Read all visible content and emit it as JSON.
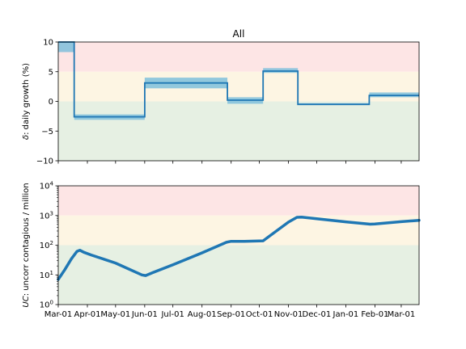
{
  "chart_data": [
    {
      "type": "line",
      "title": "All",
      "ylabel_symbol": "δ",
      "ylabel_text": ": daily growth (%)",
      "ylim": [
        -10,
        10
      ],
      "yticks": [
        -10,
        -5,
        0,
        5,
        10
      ],
      "ytick_labels": [
        "−10",
        "−5",
        "0",
        "5",
        "10"
      ],
      "x_range": [
        "2020-03-01",
        "2021-03-20"
      ],
      "bands": [
        {
          "from": 5,
          "to": 10,
          "color": "#fde5e5"
        },
        {
          "from": 0,
          "to": 5,
          "color": "#fdf5e3"
        },
        {
          "from": -10,
          "to": 0,
          "color": "#e6f0e3"
        }
      ],
      "series": [
        {
          "line_color": "#1f77b4",
          "band_color": "#7fbfdc",
          "segments": [
            {
              "start": "2020-03-01",
              "end": "2020-03-18",
              "value": 10,
              "low": 8.3,
              "high": 10
            },
            {
              "start": "2020-03-18",
              "end": "2020-06-01",
              "value": -2.6,
              "low": -3.1,
              "high": -2.2
            },
            {
              "start": "2020-06-01",
              "end": "2020-08-28",
              "value": 3.1,
              "low": 2.2,
              "high": 4.0
            },
            {
              "start": "2020-08-28",
              "end": "2020-10-05",
              "value": 0.2,
              "low": -0.4,
              "high": 0.7
            },
            {
              "start": "2020-10-05",
              "end": "2020-11-11",
              "value": 5.1,
              "low": 4.8,
              "high": 5.6
            },
            {
              "start": "2020-11-11",
              "end": "2021-01-26",
              "value": -0.5,
              "low": -0.6,
              "high": -0.3
            },
            {
              "start": "2021-01-26",
              "end": "2021-03-20",
              "value": 1.0,
              "low": 0.7,
              "high": 1.5
            }
          ]
        }
      ]
    },
    {
      "type": "line",
      "ylabel_symbol": "UC",
      "ylabel_text": ": uncorr contagious / million",
      "yscale": "log",
      "ylim": [
        1,
        10000
      ],
      "yticks": [
        1,
        10,
        100,
        1000,
        10000
      ],
      "ytick_labels": [
        {
          "base": "10",
          "exp": "0"
        },
        {
          "base": "10",
          "exp": "1"
        },
        {
          "base": "10",
          "exp": "2"
        },
        {
          "base": "10",
          "exp": "3"
        },
        {
          "base": "10",
          "exp": "4"
        }
      ],
      "x_range": [
        "2020-03-01",
        "2021-03-20"
      ],
      "bands": [
        {
          "from": 1000,
          "to": 10000,
          "color": "#fde5e5"
        },
        {
          "from": 100,
          "to": 1000,
          "color": "#fdf5e3"
        },
        {
          "from": 1,
          "to": 100,
          "color": "#e6f0e3"
        }
      ],
      "series": [
        {
          "line_color": "#1f77b4",
          "points": [
            {
              "x": "2020-03-01",
              "y": 7
            },
            {
              "x": "2020-03-08",
              "y": 15
            },
            {
              "x": "2020-03-15",
              "y": 35
            },
            {
              "x": "2020-03-21",
              "y": 62
            },
            {
              "x": "2020-03-24",
              "y": 68
            },
            {
              "x": "2020-03-28",
              "y": 58
            },
            {
              "x": "2020-04-05",
              "y": 47
            },
            {
              "x": "2020-05-01",
              "y": 25
            },
            {
              "x": "2020-05-29",
              "y": 10
            },
            {
              "x": "2020-06-02",
              "y": 9.5
            },
            {
              "x": "2020-06-10",
              "y": 12
            },
            {
              "x": "2020-07-01",
              "y": 22
            },
            {
              "x": "2020-08-01",
              "y": 55
            },
            {
              "x": "2020-08-27",
              "y": 125
            },
            {
              "x": "2020-09-01",
              "y": 135
            },
            {
              "x": "2020-09-15",
              "y": 135
            },
            {
              "x": "2020-10-05",
              "y": 140
            },
            {
              "x": "2020-10-15",
              "y": 240
            },
            {
              "x": "2020-11-01",
              "y": 600
            },
            {
              "x": "2020-11-10",
              "y": 870
            },
            {
              "x": "2020-11-15",
              "y": 880
            },
            {
              "x": "2020-12-01",
              "y": 780
            },
            {
              "x": "2021-01-01",
              "y": 610
            },
            {
              "x": "2021-01-27",
              "y": 510
            },
            {
              "x": "2021-02-01",
              "y": 520
            },
            {
              "x": "2021-03-01",
              "y": 620
            },
            {
              "x": "2021-03-20",
              "y": 690
            }
          ]
        }
      ],
      "xticks": [
        {
          "date": "2020-03-01",
          "label": "Mar-01"
        },
        {
          "date": "2020-04-01",
          "label": "Apr-01"
        },
        {
          "date": "2020-05-01",
          "label": "May-01"
        },
        {
          "date": "2020-06-01",
          "label": "Jun-01"
        },
        {
          "date": "2020-07-01",
          "label": "Jul-01"
        },
        {
          "date": "2020-08-01",
          "label": "Aug-01"
        },
        {
          "date": "2020-09-01",
          "label": "Sep-01"
        },
        {
          "date": "2020-10-01",
          "label": "Oct-01"
        },
        {
          "date": "2020-11-01",
          "label": "Nov-01"
        },
        {
          "date": "2020-12-01",
          "label": "Dec-01"
        },
        {
          "date": "2021-01-01",
          "label": "Jan-01"
        },
        {
          "date": "2021-02-01",
          "label": "Feb-01"
        },
        {
          "date": "2021-03-01",
          "label": "Mar-01"
        }
      ]
    }
  ]
}
